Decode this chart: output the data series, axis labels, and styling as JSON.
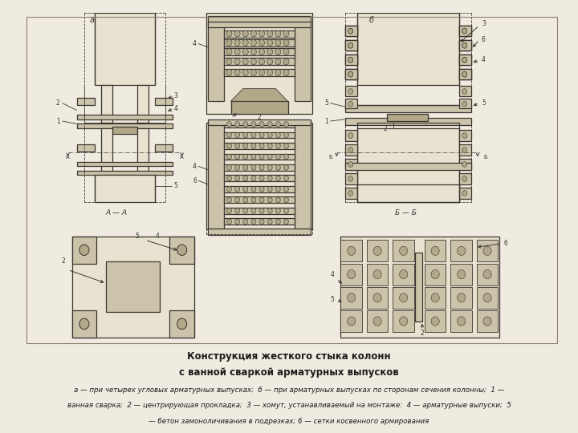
{
  "bg_outer": "#f0ebe0",
  "bg_drawing": "#ede5cc",
  "line_color": "#3a3530",
  "line_thin": 0.6,
  "line_med": 0.9,
  "line_thick": 1.4,
  "title_line1": "Конструкция жесткого стыка колонн",
  "title_line2": "с ванной сваркой арматурных выпусков",
  "caption_line1": "а — при четырех угловых арматурных выпусках;  б — при арматурных выпусках по сторонам сечения колонны;  1 —",
  "caption_line2": "ванная сварка;  2 — центрирующая прокладка;  3 — хомут, устанавливаемый на монтаже:  4 — арматурные выпуски;  5",
  "caption_line3": "— бетон замоноличивания в подрезках; 6 — сетки косвенного армирования",
  "fig_width": 7.2,
  "fig_height": 5.4,
  "dpi": 100
}
